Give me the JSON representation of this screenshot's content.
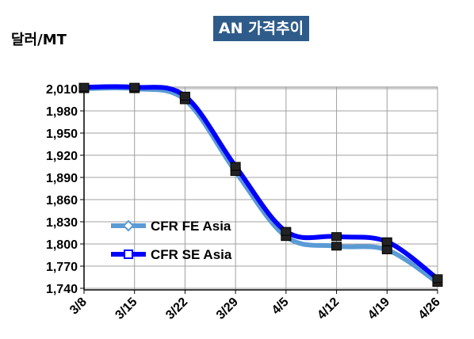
{
  "chart_data": {
    "type": "line",
    "title": "AN 가격추이",
    "ylabel": "달러/MT",
    "xlabel": "",
    "categories": [
      "3/8",
      "3/15",
      "3/22",
      "3/29",
      "4/5",
      "4/12",
      "4/19",
      "4/26"
    ],
    "y_ticks": [
      "2,010",
      "1,980",
      "1,950",
      "1,920",
      "1,890",
      "1,860",
      "1,830",
      "1,800",
      "1,770",
      "1,740"
    ],
    "ylim": [
      1740,
      2010
    ],
    "grid": true,
    "legend_position": "lower-left",
    "series": [
      {
        "name": "CFR FE Asia",
        "color": "#5b9bd5",
        "marker": "diamond",
        "values": [
          2010,
          2010,
          1995,
          1898,
          1810,
          1797,
          1792,
          1748
        ]
      },
      {
        "name": "CFR SE Asia",
        "color": "#0000ff",
        "marker": "square",
        "values": [
          2012,
          2012,
          2000,
          1905,
          1817,
          1810,
          1803,
          1753
        ]
      }
    ]
  }
}
